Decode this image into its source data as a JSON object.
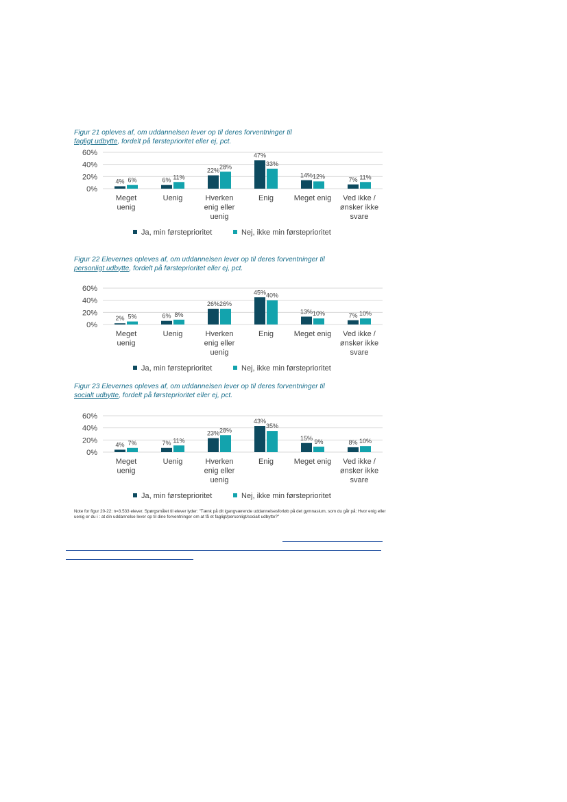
{
  "colors": {
    "series1": "#0d4a5f",
    "series2": "#13a3ad",
    "title": "#1a6f8c",
    "grid": "#d9d9d9"
  },
  "figures": [
    {
      "title_a": "Figur 21 opleves af, om uddannelsen lever op til deres forventninger til",
      "title_u": "fagligt udbytte",
      "title_b": ", fordelt på førsteprioritet eller ej, pct.",
      "chart_data": {
        "type": "bar",
        "categories": [
          "Meget uenig",
          "Uenig",
          "Hverken enig eller uenig",
          "Enig",
          "Meget enig",
          "Ved ikke / ønsker ikke svare"
        ],
        "category_lines": [
          [
            "Meget",
            "uenig"
          ],
          [
            "Uenig"
          ],
          [
            "Hverken",
            "enig eller",
            "uenig"
          ],
          [
            "Enig"
          ],
          [
            "Meget enig"
          ],
          [
            "Ved ikke /",
            "ønsker ikke",
            "svare"
          ]
        ],
        "series": [
          {
            "name": "Ja, min førsteprioritet",
            "values": [
              4,
              6,
              22,
              47,
              14,
              7
            ]
          },
          {
            "name": "Nej, ikke min førsteprioritet",
            "values": [
              6,
              11,
              28,
              33,
              12,
              11
            ]
          }
        ],
        "yticks": [
          "60%",
          "40%",
          "20%",
          "0%"
        ],
        "ylim": [
          0,
          60
        ],
        "grid": true,
        "legend": "bottom"
      }
    },
    {
      "title_a": "Figur 22 Elevernes opleves af, om uddannelsen lever op til deres forventninger til",
      "title_u": "personligt udbytte",
      "title_b": ", fordelt på førsteprioritet eller ej, pct.",
      "chart_data": {
        "type": "bar",
        "categories": [
          "Meget uenig",
          "Uenig",
          "Hverken enig eller uenig",
          "Enig",
          "Meget enig",
          "Ved ikke / ønsker ikke svare"
        ],
        "category_lines": [
          [
            "Meget",
            "uenig"
          ],
          [
            "Uenig"
          ],
          [
            "Hverken",
            "enig eller",
            "uenig"
          ],
          [
            "Enig"
          ],
          [
            "Meget enig"
          ],
          [
            "Ved ikke /",
            "ønsker ikke",
            "svare"
          ]
        ],
        "series": [
          {
            "name": "Ja, min førsteprioritet",
            "values": [
              2,
              6,
              26,
              45,
              13,
              7
            ]
          },
          {
            "name": "Nej, ikke min førsteprioritet",
            "values": [
              5,
              8,
              26,
              40,
              10,
              10
            ]
          }
        ],
        "yticks": [
          "60%",
          "40%",
          "20%",
          "0%"
        ],
        "ylim": [
          0,
          60
        ],
        "grid": true,
        "legend": "bottom"
      }
    },
    {
      "title_a": "Figur 23 Elevernes opleves af, om uddannelsen lever op til deres forventninger til",
      "title_u": "socialt udbytte",
      "title_b": ", fordelt på førsteprioritet eller ej, pct.",
      "chart_data": {
        "type": "bar",
        "categories": [
          "Meget uenig",
          "Uenig",
          "Hverken enig eller uenig",
          "Enig",
          "Meget enig",
          "Ved ikke / ønsker ikke svare"
        ],
        "category_lines": [
          [
            "Meget",
            "uenig"
          ],
          [
            "Uenig"
          ],
          [
            "Hverken",
            "enig eller",
            "uenig"
          ],
          [
            "Enig"
          ],
          [
            "Meget enig"
          ],
          [
            "Ved ikke /",
            "ønsker ikke",
            "svare"
          ]
        ],
        "series": [
          {
            "name": "Ja, min førsteprioritet",
            "values": [
              4,
              7,
              23,
              43,
              15,
              8
            ]
          },
          {
            "name": "Nej, ikke min førsteprioritet",
            "values": [
              7,
              11,
              28,
              35,
              9,
              10
            ]
          }
        ],
        "yticks": [
          "60%",
          "40%",
          "20%",
          "0%"
        ],
        "ylim": [
          0,
          60
        ],
        "grid": true,
        "legend": "bottom"
      }
    }
  ],
  "note": "Note for figur 20-22: n=3.533 elever. Spørgsmålet til elever lyder: \"Tænk på dit igangværende uddannelsesforløb på det gymnasium, som du går på: Hvor enig eller uenig er du i : at din uddannelse lever op til dine forventninger om at få et fagligt/personligt/socialt udbytte?\""
}
